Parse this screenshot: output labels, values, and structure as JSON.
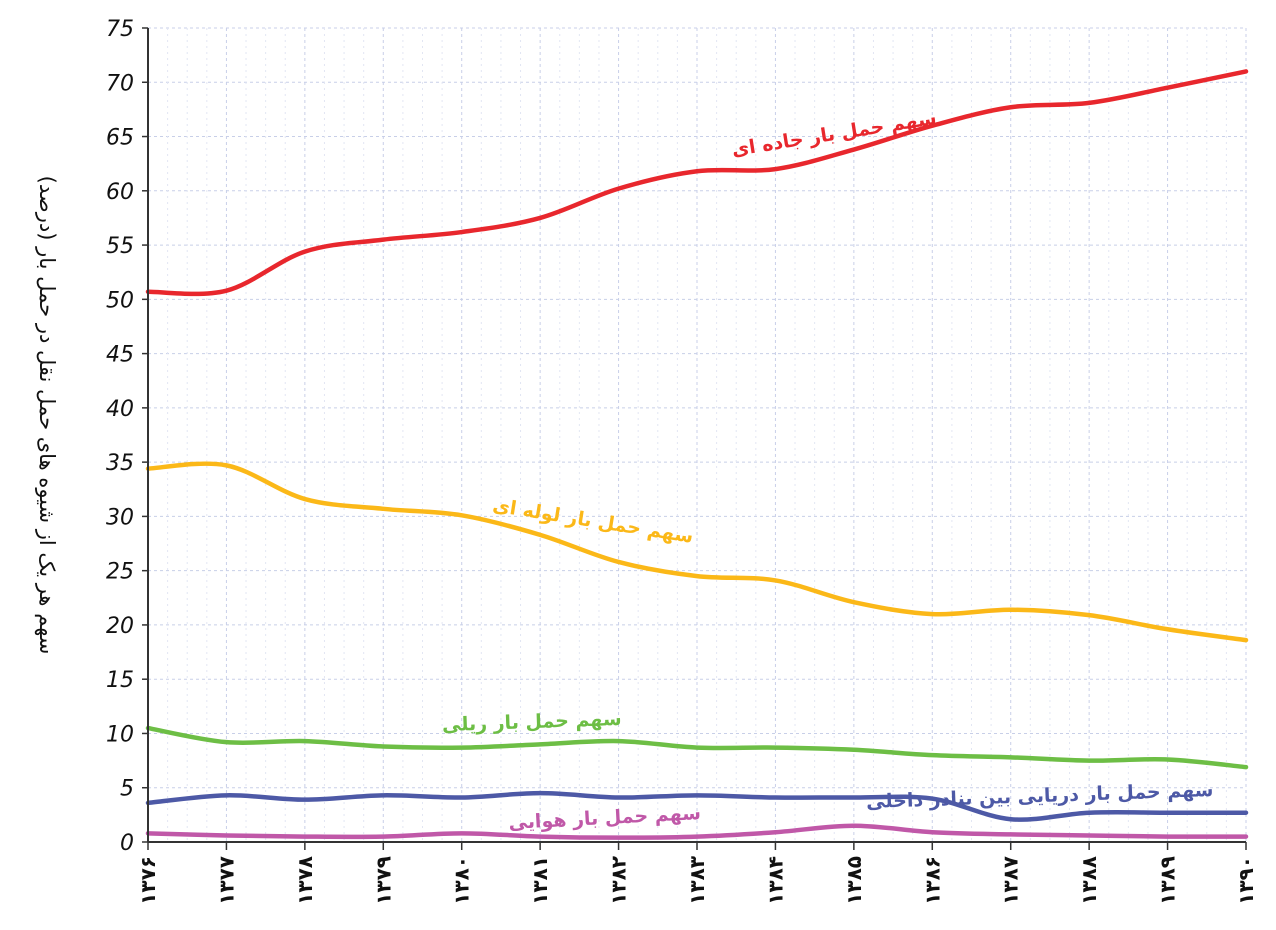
{
  "chart_data": {
    "type": "line",
    "title": "",
    "xlabel": "",
    "ylabel": "سهم هر یک از شیوه های حمل نقل در حمل بار (درصد)",
    "ylim": [
      0,
      75
    ],
    "yticks": [
      "0",
      "5",
      "10",
      "15",
      "20",
      "25",
      "30",
      "35",
      "40",
      "45",
      "50",
      "55",
      "60",
      "65",
      "70",
      "75"
    ],
    "categories": [
      "۱۳۷۶",
      "۱۳۷۷",
      "۱۳۷۸",
      "۱۳۷۹",
      "۱۳۸۰",
      "۱۳۸۱",
      "۱۳۸۲",
      "۱۳۸۳",
      "۱۳۸۴",
      "۱۳۸۵",
      "۱۳۸۶",
      "۱۳۸۷",
      "۱۳۸۸",
      "۱۳۸۹",
      "۱۳۹۰"
    ],
    "grid": true,
    "legend": "inline",
    "series": [
      {
        "name": "سهم حمل بار جاده ای",
        "color": "#e8272d",
        "values": [
          50.7,
          50.8,
          54.4,
          55.5,
          56.2,
          57.5,
          60.2,
          61.8,
          62.0,
          63.8,
          66.0,
          67.7,
          68.1,
          69.5,
          71.0
        ]
      },
      {
        "name": "سهم حمل بار لوله ای",
        "color": "#fbb818",
        "values": [
          34.4,
          34.7,
          31.6,
          30.7,
          30.1,
          28.3,
          25.8,
          24.5,
          24.1,
          22.1,
          21.0,
          21.4,
          20.9,
          19.6,
          18.6
        ]
      },
      {
        "name": "سهم حمل بار ریلی",
        "color": "#6dbe45",
        "values": [
          10.5,
          9.2,
          9.3,
          8.8,
          8.7,
          9.0,
          9.3,
          8.7,
          8.7,
          8.5,
          8.0,
          7.8,
          7.5,
          7.6,
          6.9
        ]
      },
      {
        "name": "سهم حمل بار دریایی بین بنادر داخلی",
        "color": "#4d59a6",
        "values": [
          3.6,
          4.3,
          3.9,
          4.3,
          4.1,
          4.5,
          4.1,
          4.3,
          4.1,
          4.1,
          4.0,
          2.1,
          2.7,
          2.7,
          2.7
        ]
      },
      {
        "name": "سهم حمل بار هوایی",
        "color": "#c058a8",
        "values": [
          0.8,
          0.6,
          0.5,
          0.5,
          0.8,
          0.5,
          0.4,
          0.5,
          0.9,
          1.5,
          0.9,
          0.7,
          0.6,
          0.5,
          0.5
        ]
      }
    ]
  }
}
